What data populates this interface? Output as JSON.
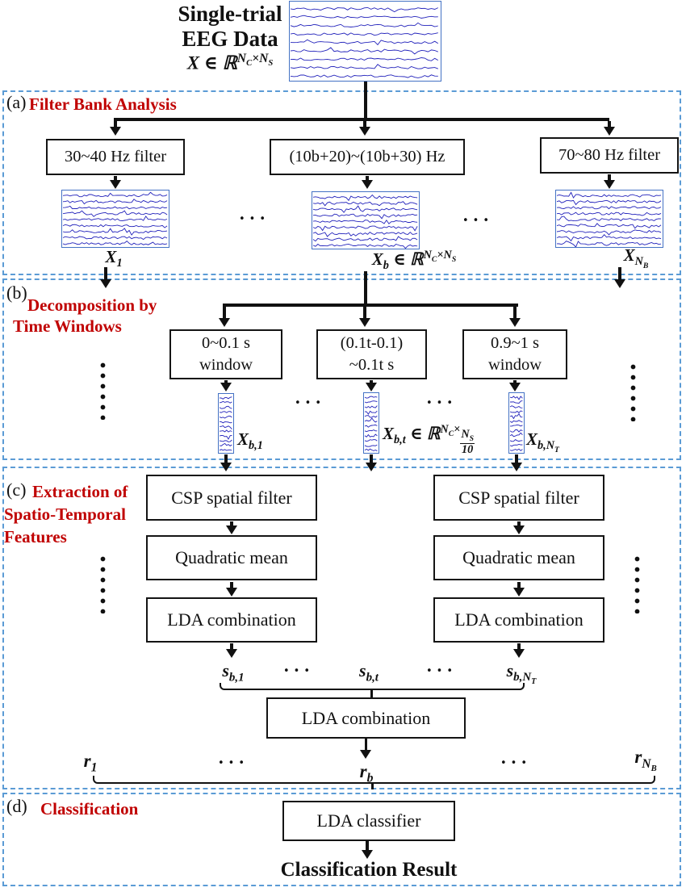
{
  "misc": {
    "hdots": "•••"
  },
  "header": {
    "title_line1": "Single-trial",
    "title_line2": "EEG Data",
    "dim": "X ∈ ℝ^{N_{C}×N_{S}}"
  },
  "sections": {
    "a": {
      "tag": "(a)",
      "title": "Filter Bank Analysis"
    },
    "b": {
      "tag": "(b)",
      "title_line1": "Decomposition by",
      "title_line2": "Time Windows"
    },
    "c": {
      "tag": "(c)",
      "title_line1": "Extraction of",
      "title_line2": "Spatio-Temporal",
      "title_line3": "Features"
    },
    "d": {
      "tag": "(d)",
      "title": "Classification"
    }
  },
  "filter_bank": {
    "filters": [
      "30~40 Hz filter",
      "(10b+20)~(10b+30) Hz",
      "70~80 Hz filter"
    ],
    "outputs": [
      "X_{1}",
      "X_{b} ∈ ℝ^{N_{C}×N_{S}}",
      "X_{N_{B}}"
    ]
  },
  "time_windows": {
    "windows": [
      [
        "0~0.1 s",
        "window"
      ],
      [
        "(0.1t-0.1)",
        "~0.1t s"
      ],
      [
        "0.9~1 s",
        "window"
      ]
    ],
    "outputs": [
      "X_{b,1}",
      "X_{b,t} ∈ ℝ^{N_{C}×\\frac{N_{S}}{10}}",
      "X_{b,N_{T}}"
    ]
  },
  "feature_extraction": {
    "pipeline": [
      "CSP spatial filter",
      "Quadratic mean",
      "LDA combination"
    ],
    "s_labels": [
      "s_{b,1}",
      "s_{b,t}",
      "s_{b,N_{T}}"
    ],
    "combiner": "LDA combination",
    "r_labels": [
      "r_{1}",
      "r_{b}",
      "r_{N_{B}}"
    ]
  },
  "classification": {
    "box": "LDA classifier",
    "result": "Classification Result"
  },
  "colors": {
    "accent_red": "#c00000",
    "border_blue": "#5b9bd5",
    "eeg_blue": "#2222bb",
    "line_black": "#111111"
  }
}
